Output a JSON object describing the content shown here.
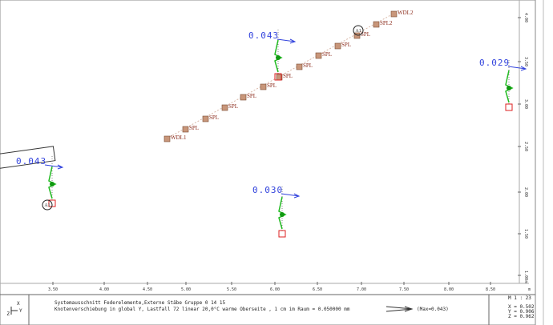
{
  "drawing": {
    "displacements": [
      "0.043",
      "0.029",
      "0.043",
      "0.030"
    ],
    "nodes": [
      "WDL1",
      "SPL",
      "SPL",
      "SPL",
      "SPL",
      "SPL",
      "SPL",
      "SPL",
      "SPL",
      "SPL",
      "SPL",
      "SPL2",
      "WDL2"
    ],
    "supports": [
      "A1",
      "A1"
    ]
  },
  "x_axis": {
    "labels": [
      "3.50",
      "4.00",
      "4.50",
      "5.00",
      "5.50",
      "6.00",
      "6.50",
      "7.00",
      "7.50",
      "8.00",
      "8.50"
    ],
    "unit": "m"
  },
  "y_axis": {
    "labels": [
      "4.00",
      "3.50",
      "3.00",
      "2.50",
      "2.00",
      "1.50",
      "1.00"
    ],
    "unit": "m"
  },
  "axis_icon": {
    "z": "Z",
    "x": "X",
    "y": "Y"
  },
  "footer": {
    "line1": "Systemausschnitt Federelemente,Externe Stäbe Gruppe 0 14 15",
    "line2": "Knotenverschiebung in global Y, Lastfall 72  linear 20,0°C warme Oberseite   , 1 cm im Raum =  0.050000 mm",
    "max": "(Max=0.043)",
    "scale": "M 1 : 23",
    "x": "X = 0.502",
    "y": "Y = 0.906",
    "z": "Z = 0.962"
  }
}
